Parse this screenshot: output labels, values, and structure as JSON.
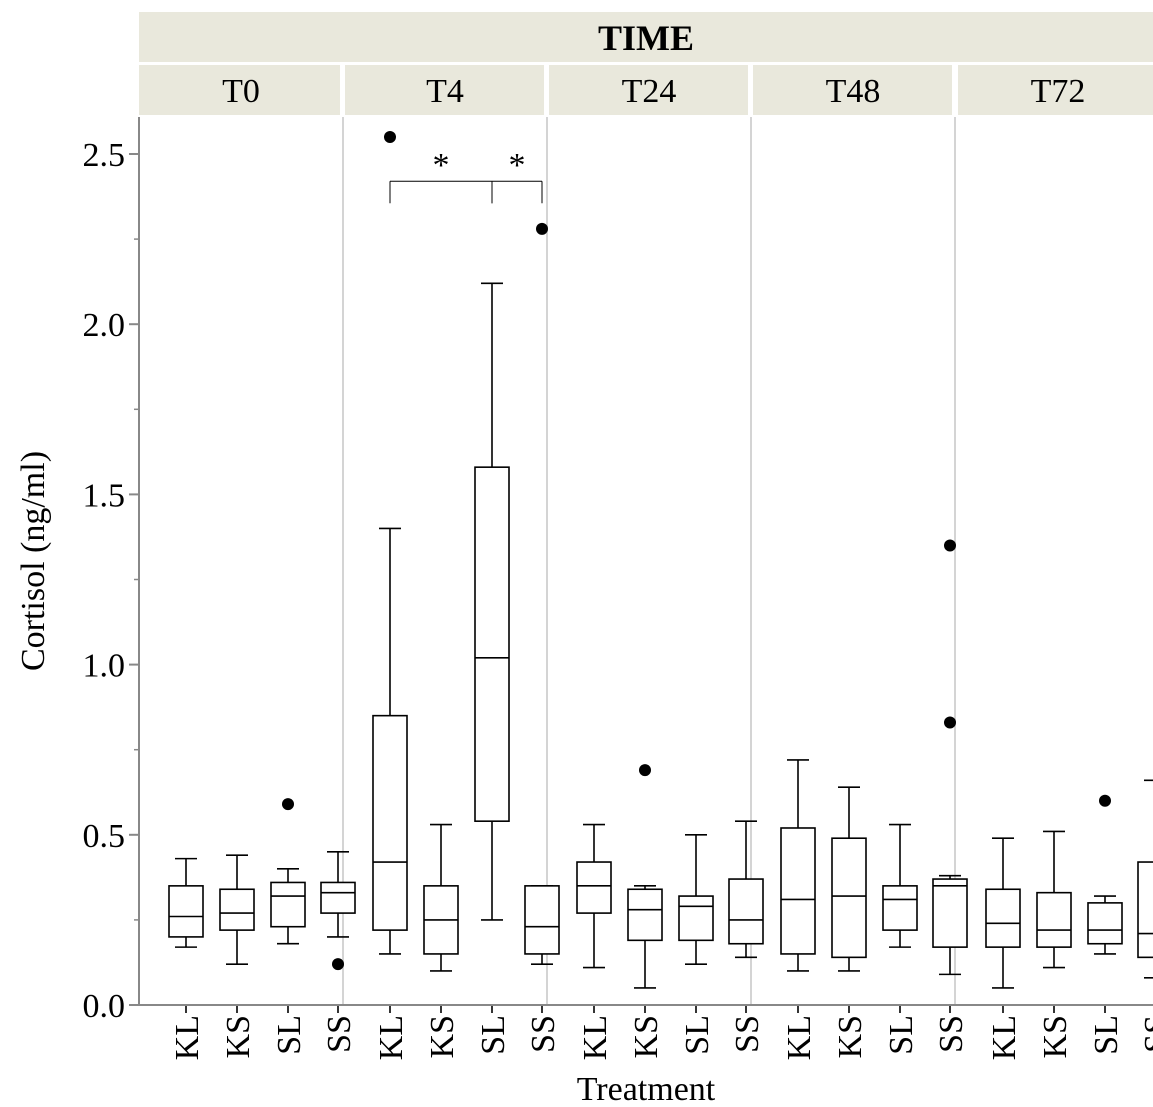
{
  "chart_data": {
    "type": "box",
    "header": "TIME",
    "ylabel": "Cortisol (ng/ml)",
    "xlabel": "Treatment",
    "ylim": [
      0,
      2.6
    ],
    "yticks": [
      "0.0",
      "0.5",
      "1.0",
      "1.5",
      "2.0",
      "2.5"
    ],
    "categories": [
      "KL",
      "KS",
      "SL",
      "SS"
    ],
    "panels": [
      {
        "name": "T0",
        "boxes": [
          {
            "cat": "KL",
            "min": 0.17,
            "q1": 0.2,
            "median": 0.26,
            "q3": 0.35,
            "max": 0.43,
            "outliers": []
          },
          {
            "cat": "KS",
            "min": 0.12,
            "q1": 0.22,
            "median": 0.27,
            "q3": 0.34,
            "max": 0.44,
            "outliers": []
          },
          {
            "cat": "SL",
            "min": 0.18,
            "q1": 0.23,
            "median": 0.32,
            "q3": 0.36,
            "max": 0.4,
            "outliers": [
              0.59
            ]
          },
          {
            "cat": "SS",
            "min": 0.2,
            "q1": 0.27,
            "median": 0.33,
            "q3": 0.36,
            "max": 0.45,
            "outliers": [
              0.12
            ]
          }
        ]
      },
      {
        "name": "T4",
        "boxes": [
          {
            "cat": "KL",
            "min": 0.15,
            "q1": 0.22,
            "median": 0.42,
            "q3": 0.85,
            "max": 1.4,
            "outliers": [
              2.55
            ]
          },
          {
            "cat": "KS",
            "min": 0.1,
            "q1": 0.15,
            "median": 0.25,
            "q3": 0.35,
            "max": 0.53,
            "outliers": []
          },
          {
            "cat": "SL",
            "min": 0.25,
            "q1": 0.54,
            "median": 1.02,
            "q3": 1.58,
            "max": 2.12,
            "outliers": []
          },
          {
            "cat": "SS",
            "min": 0.12,
            "q1": 0.15,
            "median": 0.23,
            "q3": 0.35,
            "max": 0.35,
            "outliers": [
              2.28
            ]
          }
        ]
      },
      {
        "name": "T24",
        "boxes": [
          {
            "cat": "KL",
            "min": 0.11,
            "q1": 0.27,
            "median": 0.35,
            "q3": 0.42,
            "max": 0.53,
            "outliers": []
          },
          {
            "cat": "KS",
            "min": 0.05,
            "q1": 0.19,
            "median": 0.28,
            "q3": 0.34,
            "max": 0.35,
            "outliers": [
              0.69
            ]
          },
          {
            "cat": "SL",
            "min": 0.12,
            "q1": 0.19,
            "median": 0.29,
            "q3": 0.32,
            "max": 0.5,
            "outliers": []
          },
          {
            "cat": "SS",
            "min": 0.14,
            "q1": 0.18,
            "median": 0.25,
            "q3": 0.37,
            "max": 0.54,
            "outliers": []
          }
        ]
      },
      {
        "name": "T48",
        "boxes": [
          {
            "cat": "KL",
            "min": 0.1,
            "q1": 0.15,
            "median": 0.31,
            "q3": 0.52,
            "max": 0.72,
            "outliers": []
          },
          {
            "cat": "KS",
            "min": 0.1,
            "q1": 0.14,
            "median": 0.32,
            "q3": 0.49,
            "max": 0.64,
            "outliers": []
          },
          {
            "cat": "SL",
            "min": 0.17,
            "q1": 0.22,
            "median": 0.31,
            "q3": 0.35,
            "max": 0.53,
            "outliers": []
          },
          {
            "cat": "SS",
            "min": 0.09,
            "q1": 0.17,
            "median": 0.35,
            "q3": 0.37,
            "max": 0.38,
            "outliers": [
              0.83,
              1.35
            ]
          }
        ]
      },
      {
        "name": "T72",
        "boxes": [
          {
            "cat": "KL",
            "min": 0.05,
            "q1": 0.17,
            "median": 0.24,
            "q3": 0.34,
            "max": 0.49,
            "outliers": []
          },
          {
            "cat": "KS",
            "min": 0.11,
            "q1": 0.17,
            "median": 0.22,
            "q3": 0.33,
            "max": 0.51,
            "outliers": []
          },
          {
            "cat": "SL",
            "min": 0.15,
            "q1": 0.18,
            "median": 0.22,
            "q3": 0.3,
            "max": 0.32,
            "outliers": [
              0.6
            ]
          },
          {
            "cat": "SS",
            "min": 0.08,
            "q1": 0.14,
            "median": 0.21,
            "q3": 0.42,
            "max": 0.66,
            "outliers": []
          }
        ]
      }
    ],
    "annotations": [
      {
        "panel": "T4",
        "from": "KL",
        "to": "SL",
        "y": 2.42,
        "label": "*"
      },
      {
        "panel": "T4",
        "from": "SL",
        "to": "SS",
        "y": 2.42,
        "label": "*"
      }
    ],
    "grid": false
  }
}
